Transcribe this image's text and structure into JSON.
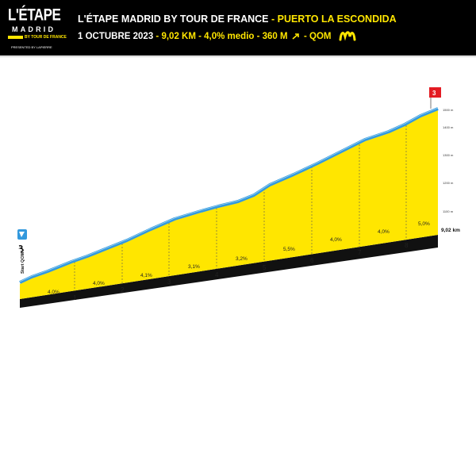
{
  "header": {
    "logo_main": "L'ÉTAPE",
    "logo_sub": "MADRID",
    "logo_tdf": "BY TOUR DE FRANCE",
    "logo_presented": "PRESENTED BY LAPIERRE",
    "title": "L'ÉTAPE MADRID BY TOUR DE FRANCE",
    "title_sep": " - ",
    "title_climb": "PUERTO LA ESCONDIDA",
    "date": "1 OCTUBRE 2023",
    "stats": "9,02 KM - 4,0% medio - 360 M",
    "qom": "QOM",
    "colors": {
      "accent_yellow": "#ffe600",
      "profile_blue": "#3399dd"
    }
  },
  "profile": {
    "start_label": "Start QOM",
    "distance_label": "9,02 km",
    "summit_category": "3",
    "altitude_labels": [
      "1500 m",
      "1400 m",
      "1300 m",
      "1200 m",
      "1100 m"
    ],
    "km_markers": [
      "1",
      "2",
      "3",
      "4",
      "5",
      "6",
      "7",
      "8"
    ],
    "gradients": [
      "4,0%",
      "4,0%",
      "4,1%",
      "3,1%",
      "3,2%",
      "5,5%",
      "4,0%",
      "4,0%",
      "5,0%"
    ]
  }
}
